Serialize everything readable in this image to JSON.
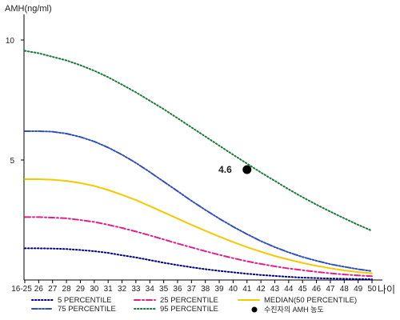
{
  "chart_data": {
    "type": "line",
    "ylabel": "AMH(ng/ml)",
    "xlabel": "나이",
    "x": [
      "16-25",
      "26",
      "27",
      "28",
      "29",
      "30",
      "31",
      "32",
      "33",
      "34",
      "35",
      "36",
      "37",
      "38",
      "39",
      "40",
      "41",
      "42",
      "43",
      "44",
      "45",
      "46",
      "47",
      "48",
      "49",
      "50"
    ],
    "ylim": [
      0,
      11
    ],
    "yticks": [
      "5",
      "10"
    ],
    "ytick_values": [
      5,
      10
    ],
    "grid": false,
    "legend_position": "bottom",
    "series": [
      {
        "name": "5 PERCENTILE",
        "color": "#000080",
        "style": "dotted",
        "values": [
          1.32,
          1.32,
          1.31,
          1.29,
          1.25,
          1.2,
          1.13,
          1.03,
          0.94,
          0.83,
          0.72,
          0.62,
          0.53,
          0.45,
          0.38,
          0.32,
          0.26,
          0.21,
          0.17,
          0.13,
          0.1,
          0.08,
          0.06,
          0.05,
          0.04,
          0.03
        ]
      },
      {
        "name": "25 PERCENTILE",
        "color": "#e0208a",
        "style": "dashdot",
        "values": [
          2.62,
          2.62,
          2.6,
          2.57,
          2.5,
          2.42,
          2.3,
          2.17,
          2.02,
          1.86,
          1.69,
          1.52,
          1.36,
          1.2,
          1.05,
          0.91,
          0.78,
          0.67,
          0.57,
          0.48,
          0.41,
          0.34,
          0.28,
          0.23,
          0.19,
          0.16
        ]
      },
      {
        "name": "MEDIAN(50 PERCENTILE)",
        "color": "#f5c800",
        "style": "solid",
        "values": [
          4.2,
          4.2,
          4.18,
          4.13,
          4.04,
          3.92,
          3.75,
          3.55,
          3.33,
          3.08,
          2.82,
          2.56,
          2.3,
          2.05,
          1.81,
          1.58,
          1.37,
          1.18,
          1.0,
          0.85,
          0.71,
          0.59,
          0.49,
          0.4,
          0.33,
          0.28
        ]
      },
      {
        "name": "75 PERCENTILE",
        "color": "#3050c0",
        "style": "dashdotdot",
        "values": [
          6.2,
          6.2,
          6.18,
          6.1,
          5.96,
          5.77,
          5.52,
          5.22,
          4.88,
          4.5,
          4.1,
          3.7,
          3.3,
          2.92,
          2.56,
          2.22,
          1.91,
          1.62,
          1.37,
          1.15,
          0.96,
          0.8,
          0.66,
          0.55,
          0.45,
          0.37
        ]
      },
      {
        "name": "95 PERCENTILE",
        "color": "#1a7a3a",
        "style": "dotted",
        "values": [
          9.55,
          9.45,
          9.3,
          9.15,
          8.95,
          8.72,
          8.45,
          8.14,
          7.82,
          7.47,
          7.12,
          6.74,
          6.36,
          5.98,
          5.6,
          5.22,
          4.85,
          4.48,
          4.13,
          3.78,
          3.45,
          3.14,
          2.85,
          2.57,
          2.3,
          2.05
        ]
      }
    ],
    "patient_marker": {
      "name": "수진자의 AMH 농도",
      "x": "41",
      "value": 4.6,
      "label": "4.6",
      "color": "#000000"
    }
  }
}
